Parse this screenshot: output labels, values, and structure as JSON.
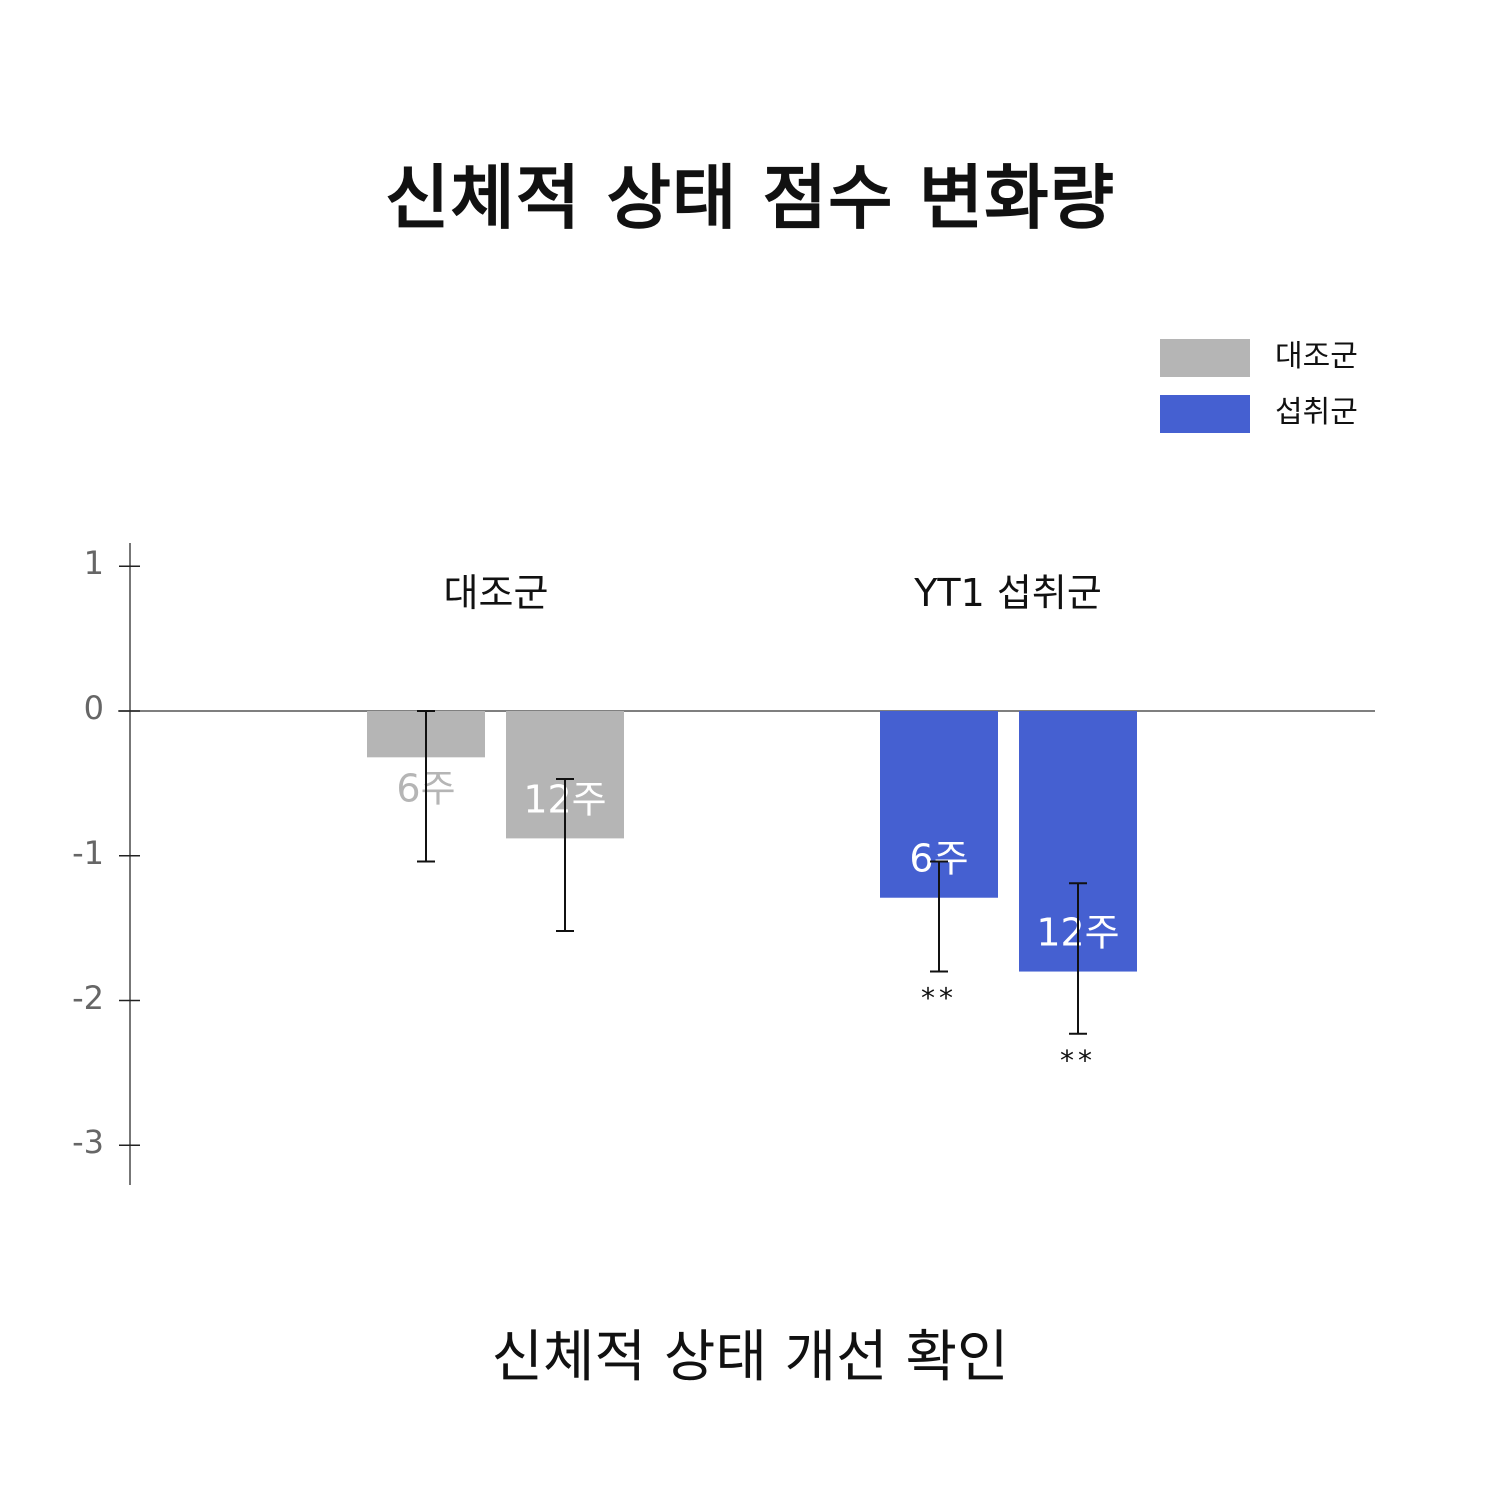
{
  "title": "신체적 상태 점수 변화량",
  "subtitle": "신체적 상태 개선 확인",
  "legend": [
    {
      "label": "대조군",
      "color": "#b5b5b5"
    },
    {
      "label": "섭취군",
      "color": "#4560d1"
    }
  ],
  "groups": [
    {
      "label": "대조군"
    },
    {
      "label": "YT1 섭취군"
    }
  ],
  "colors": {
    "control": "#b5b5b5",
    "treatment": "#4560d1",
    "axis": "#777777",
    "error": "#111111"
  },
  "chart_data": {
    "type": "bar",
    "title": "신체적 상태 점수 변화량",
    "subtitle": "신체적 상태 개선 확인",
    "xlabel": "",
    "ylabel": "",
    "ylim": [
      -3.3,
      1.15
    ],
    "yticks": [
      1,
      0,
      -1,
      -2,
      -3
    ],
    "ytick_labels": [
      "1",
      "0",
      "-1",
      "-2",
      "-3"
    ],
    "grid": false,
    "legend_position": "top-right",
    "categories": [
      "대조군",
      "YT1 섭취군"
    ],
    "bar_labels": [
      "6주",
      "12주"
    ],
    "series": [
      {
        "name": "대조군",
        "group": "대조군",
        "color": "#b5b5b5",
        "labels": [
          "6주",
          "12주"
        ],
        "values": [
          -0.32,
          -0.88
        ],
        "error_upper": [
          0.0,
          -0.47
        ],
        "error_lower": [
          -1.04,
          -1.52
        ],
        "significance": [
          "",
          ""
        ]
      },
      {
        "name": "섭취군",
        "group": "YT1 섭취군",
        "color": "#4560d1",
        "labels": [
          "6주",
          "12주"
        ],
        "values": [
          -1.29,
          -1.8
        ],
        "error_upper": [
          -1.04,
          -1.19
        ],
        "error_lower": [
          -1.8,
          -2.23
        ],
        "significance": [
          "**",
          "**"
        ]
      }
    ]
  }
}
